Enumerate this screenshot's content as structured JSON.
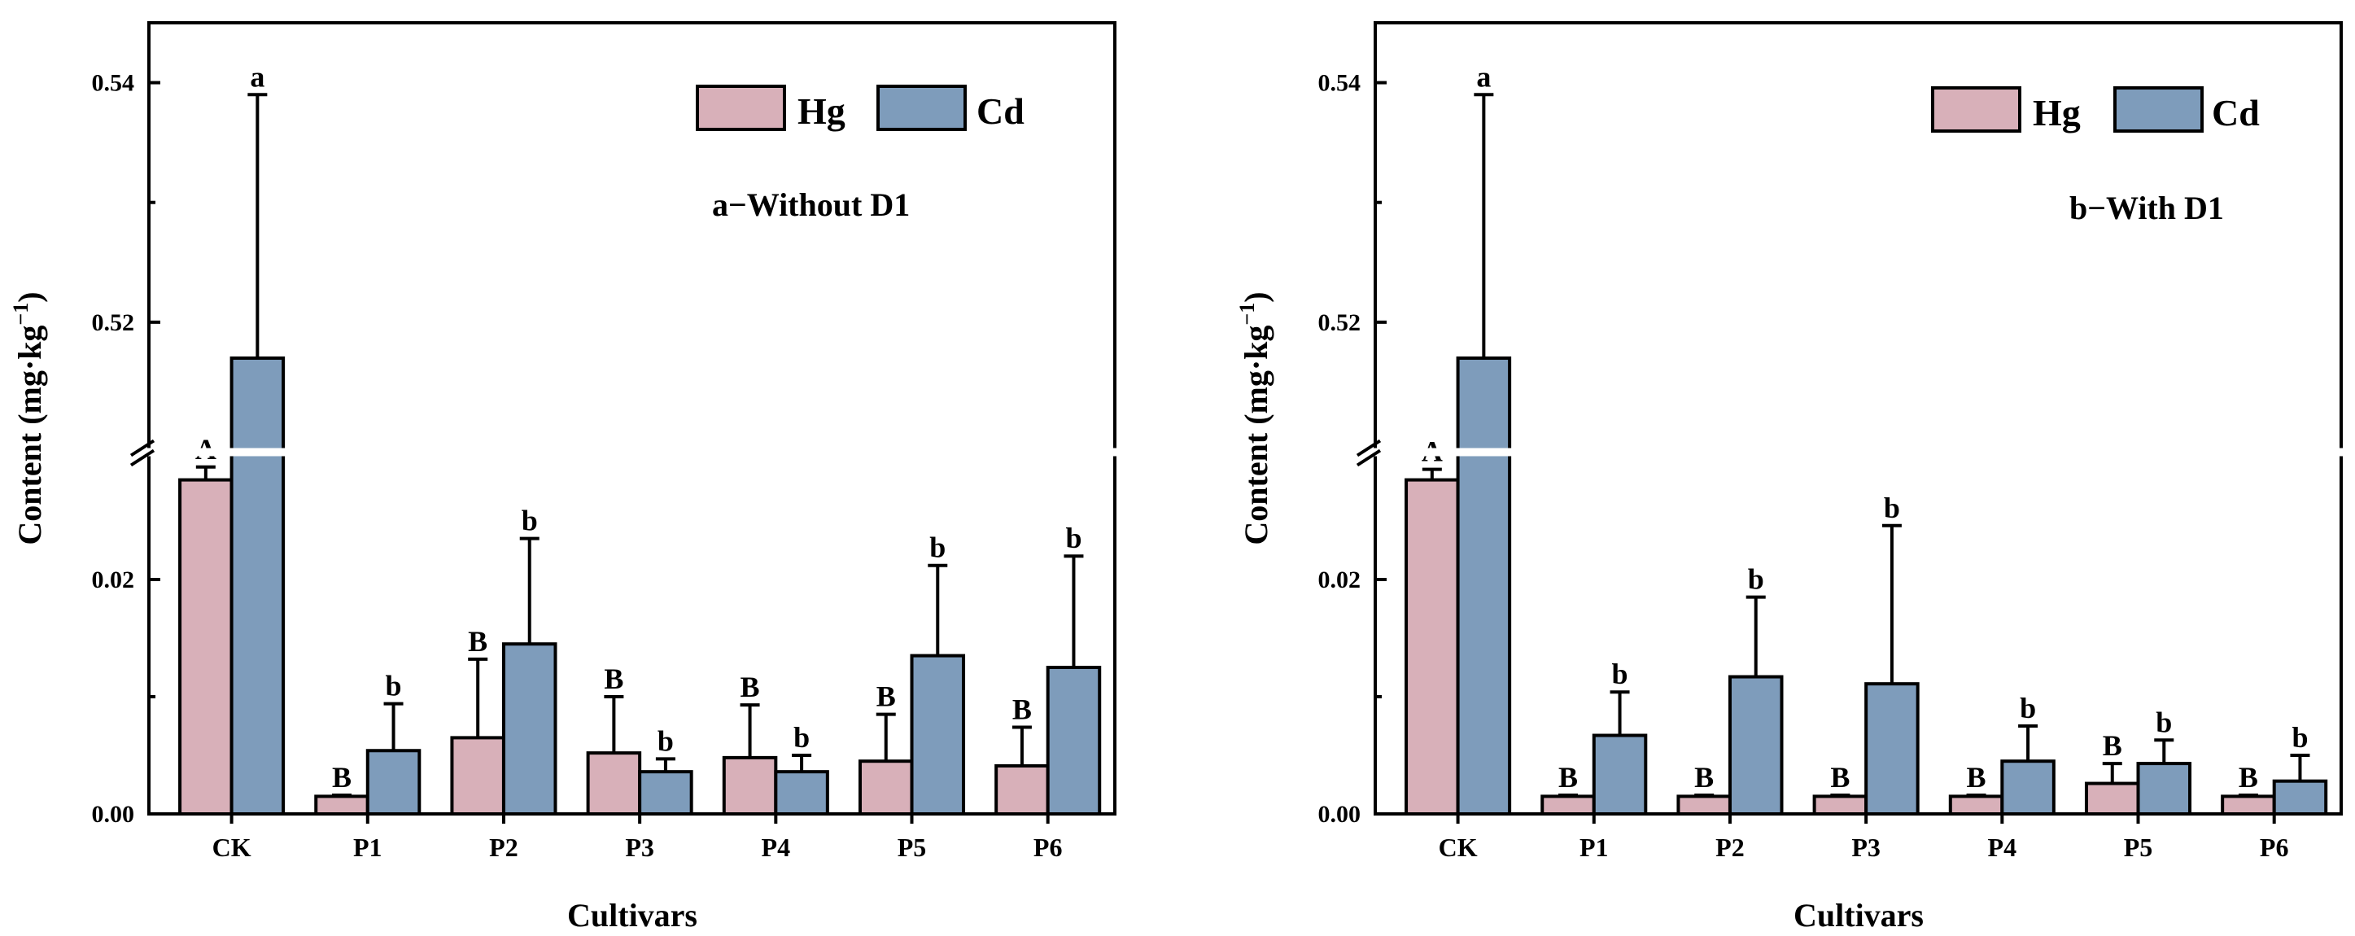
{
  "chart_data": [
    {
      "type": "bar",
      "title": "a−Without D1",
      "xlabel": "Cultivars",
      "ylabel": "Content (mg·kg−1)",
      "categories": [
        "CK",
        "P1",
        "P2",
        "P3",
        "P4",
        "P5",
        "P6"
      ],
      "y_break": {
        "lower_range": [
          0,
          0.03
        ],
        "upper_range": [
          0.51,
          0.545
        ]
      },
      "yticks": [
        "0.00",
        "0.02",
        "0.52",
        "0.54"
      ],
      "legend_position": "top-right",
      "series": [
        {
          "name": "Hg",
          "color": "#d8b0b9",
          "values": [
            0.0285,
            0.0015,
            0.0065,
            0.0052,
            0.0048,
            0.0045,
            0.0041
          ],
          "errors": [
            0.0011,
            0.0001,
            0.0067,
            0.0048,
            0.0045,
            0.004,
            0.0033
          ],
          "labels": [
            "A",
            "B",
            "B",
            "B",
            "B",
            "B",
            "B"
          ]
        },
        {
          "name": "Cd",
          "color": "#7e9cbb",
          "values": [
            0.517,
            0.0054,
            0.0145,
            0.0036,
            0.0036,
            0.0135,
            0.0125
          ],
          "errors": [
            0.022,
            0.004,
            0.009,
            0.0011,
            0.0014,
            0.0077,
            0.0095
          ],
          "labels": [
            "a",
            "b",
            "b",
            "b",
            "b",
            "b",
            "b"
          ]
        }
      ]
    },
    {
      "type": "bar",
      "title": "b−With D1",
      "xlabel": "Cultivars",
      "ylabel": "Content (mg·kg−1)",
      "categories": [
        "CK",
        "P1",
        "P2",
        "P3",
        "P4",
        "P5",
        "P6"
      ],
      "y_break": {
        "lower_range": [
          0,
          0.03
        ],
        "upper_range": [
          0.51,
          0.545
        ]
      },
      "yticks": [
        "0.00",
        "0.02",
        "0.52",
        "0.54"
      ],
      "legend_position": "top-right",
      "series": [
        {
          "name": "Hg",
          "color": "#d8b0b9",
          "values": [
            0.0285,
            0.0015,
            0.0015,
            0.0015,
            0.0015,
            0.0026,
            0.0015
          ],
          "errors": [
            0.0009,
            0.0001,
            0.0001,
            0.0001,
            0.0001,
            0.0017,
            0.0001
          ],
          "labels": [
            "A",
            "B",
            "B",
            "B",
            "B",
            "B",
            "B"
          ]
        },
        {
          "name": "Cd",
          "color": "#7e9cbb",
          "values": [
            0.517,
            0.0067,
            0.0117,
            0.0111,
            0.0045,
            0.0043,
            0.0028
          ],
          "errors": [
            0.022,
            0.0037,
            0.0068,
            0.0135,
            0.003,
            0.002,
            0.0022
          ],
          "labels": [
            "a",
            "b",
            "b",
            "b",
            "b",
            "b",
            "b"
          ]
        }
      ]
    }
  ]
}
